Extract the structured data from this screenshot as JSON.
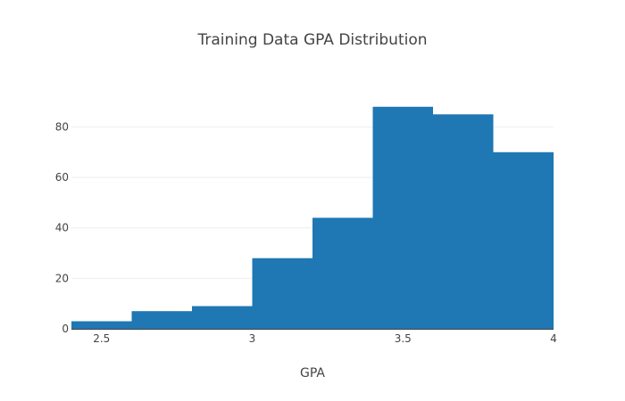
{
  "chart_data": {
    "type": "bar",
    "title": "Training Data GPA Distribution",
    "xlabel": "GPA",
    "ylabel": "",
    "bin_edges": [
      2.4,
      2.6,
      2.8,
      3.0,
      3.2,
      3.4,
      3.6,
      3.8,
      4.0
    ],
    "values": [
      3,
      7,
      9,
      28,
      44,
      88,
      85,
      70
    ],
    "xlim": [
      2.4,
      4.0
    ],
    "ylim": [
      0,
      95
    ],
    "xticks": [
      2.5,
      3,
      3.5,
      4
    ],
    "xtick_labels": [
      "2.5",
      "3",
      "3.5",
      "4"
    ],
    "yticks": [
      0,
      20,
      40,
      60,
      80
    ],
    "ytick_labels": [
      "0",
      "20",
      "40",
      "60",
      "80"
    ],
    "bar_color": "#1f77b4",
    "grid": true,
    "legend": "none"
  }
}
